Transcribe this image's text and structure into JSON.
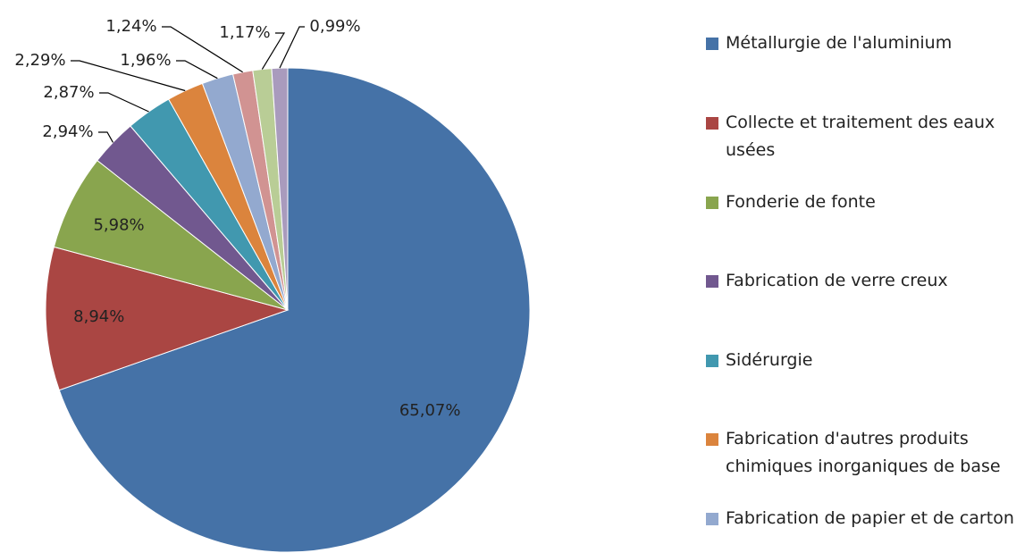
{
  "chart_data": {
    "type": "pie",
    "categories": [
      "Métallurgie de l'aluminium",
      "Collecte et traitement des eaux usées",
      "Fonderie de fonte",
      "Fabrication de verre creux",
      "Sidérurgie",
      "Fabrication d'autres produits chimiques inorganiques de base",
      "Fabrication de papier et de carton",
      null,
      null,
      null
    ],
    "values": [
      65.07,
      8.94,
      5.98,
      2.94,
      2.87,
      2.29,
      1.96,
      1.24,
      1.17,
      0.99
    ],
    "value_labels": [
      "65,07%",
      "8,94%",
      "5,98%",
      "2,94%",
      "2,87%",
      "2,29%",
      "1,96%",
      "1,24%",
      "1,17%",
      "0,99%"
    ],
    "colors": [
      "#4572a7",
      "#aa4643",
      "#89a54e",
      "#71588f",
      "#4198af",
      "#db843d",
      "#93a9cf",
      "#d19392",
      "#b9cd96",
      "#a99bbd"
    ],
    "legend": "right"
  }
}
